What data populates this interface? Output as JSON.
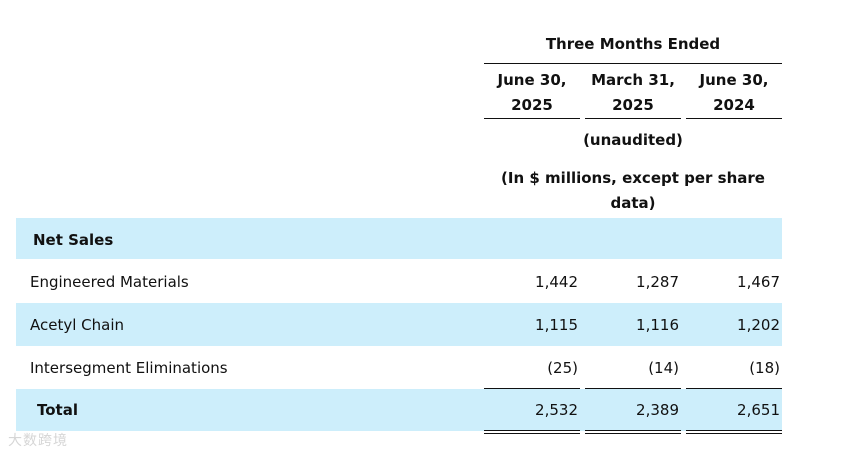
{
  "header": {
    "period_title": "Three Months Ended",
    "columns": [
      {
        "line1": "June 30,",
        "line2": "2025"
      },
      {
        "line1": "March 31,",
        "line2": "2025"
      },
      {
        "line1": "June 30,",
        "line2": "2024"
      }
    ],
    "unaudited": "(unaudited)",
    "units_line1": "(In $ millions, except per share",
    "units_line2": "data)"
  },
  "section": {
    "title": "Net Sales"
  },
  "rows": [
    {
      "label": "Engineered Materials",
      "values": [
        "1,442",
        "1,287",
        "1,467"
      ]
    },
    {
      "label": "Acetyl Chain",
      "values": [
        "1,115",
        "1,116",
        "1,202"
      ]
    },
    {
      "label": "Intersegment Eliminations",
      "values": [
        "(25)",
        "(14)",
        "(18)"
      ]
    }
  ],
  "total": {
    "label": "Total",
    "values": [
      "2,532",
      "2,389",
      "2,651"
    ]
  },
  "watermark": "大数跨境",
  "colors": {
    "band": "#cdeefb",
    "text": "#111111"
  }
}
